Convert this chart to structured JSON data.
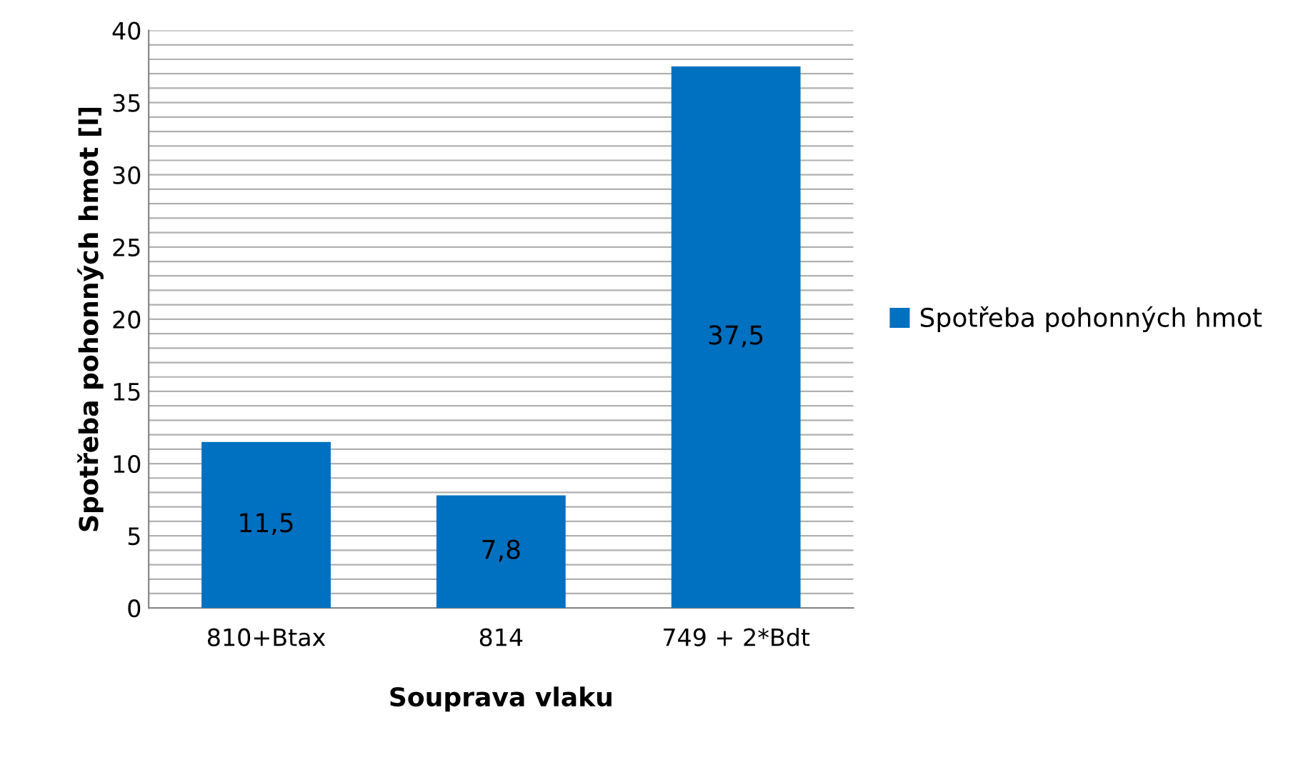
{
  "chart_data": {
    "type": "bar",
    "xlabel": "Souprava vlaku",
    "ylabel": "Spotřeba pohonných hmot [l]",
    "categories": [
      "810+Btax",
      "814",
      "749 + 2*Bdt"
    ],
    "series": [
      {
        "name": "Spotřeba pohonných hmot",
        "color": "#0070c0",
        "values": [
          11.5,
          7.8,
          37.5
        ],
        "value_labels": [
          "11,5",
          "7,8",
          "37,5"
        ]
      }
    ],
    "ylim": [
      0,
      40
    ],
    "yticks": [
      0,
      {
        "value": 1,
        "label": null
      },
      {
        "value": 2,
        "label": null
      },
      {
        "value": 3,
        "label": null
      },
      {
        "value": 4,
        "label": null
      },
      5,
      {
        "value": 6,
        "label": null
      },
      {
        "value": 7,
        "label": null
      },
      {
        "value": 8,
        "label": null
      },
      {
        "value": 9,
        "label": null
      },
      10,
      {
        "value": 11,
        "label": null
      },
      {
        "value": 12,
        "label": null
      },
      {
        "value": 13,
        "label": null
      },
      {
        "value": 14,
        "label": null
      },
      15,
      {
        "value": 16,
        "label": null
      },
      {
        "value": 17,
        "label": null
      },
      {
        "value": 18,
        "label": null
      },
      {
        "value": 19,
        "label": null
      },
      20,
      {
        "value": 21,
        "label": null
      },
      {
        "value": 22,
        "label": null
      },
      {
        "value": 23,
        "label": null
      },
      {
        "value": 24,
        "label": null
      },
      25,
      {
        "value": 26,
        "label": null
      },
      {
        "value": 27,
        "label": null
      },
      {
        "value": 28,
        "label": null
      },
      {
        "value": 29,
        "label": null
      },
      30,
      {
        "value": 31,
        "label": null
      },
      {
        "value": 32,
        "label": null
      },
      {
        "value": 33,
        "label": null
      },
      {
        "value": 34,
        "label": null
      },
      35,
      {
        "value": 36,
        "label": null
      },
      {
        "value": 37,
        "label": null
      },
      {
        "value": 38,
        "label": null
      },
      {
        "value": 39,
        "label": null
      },
      40
    ],
    "grid": "y",
    "legend": "right"
  }
}
